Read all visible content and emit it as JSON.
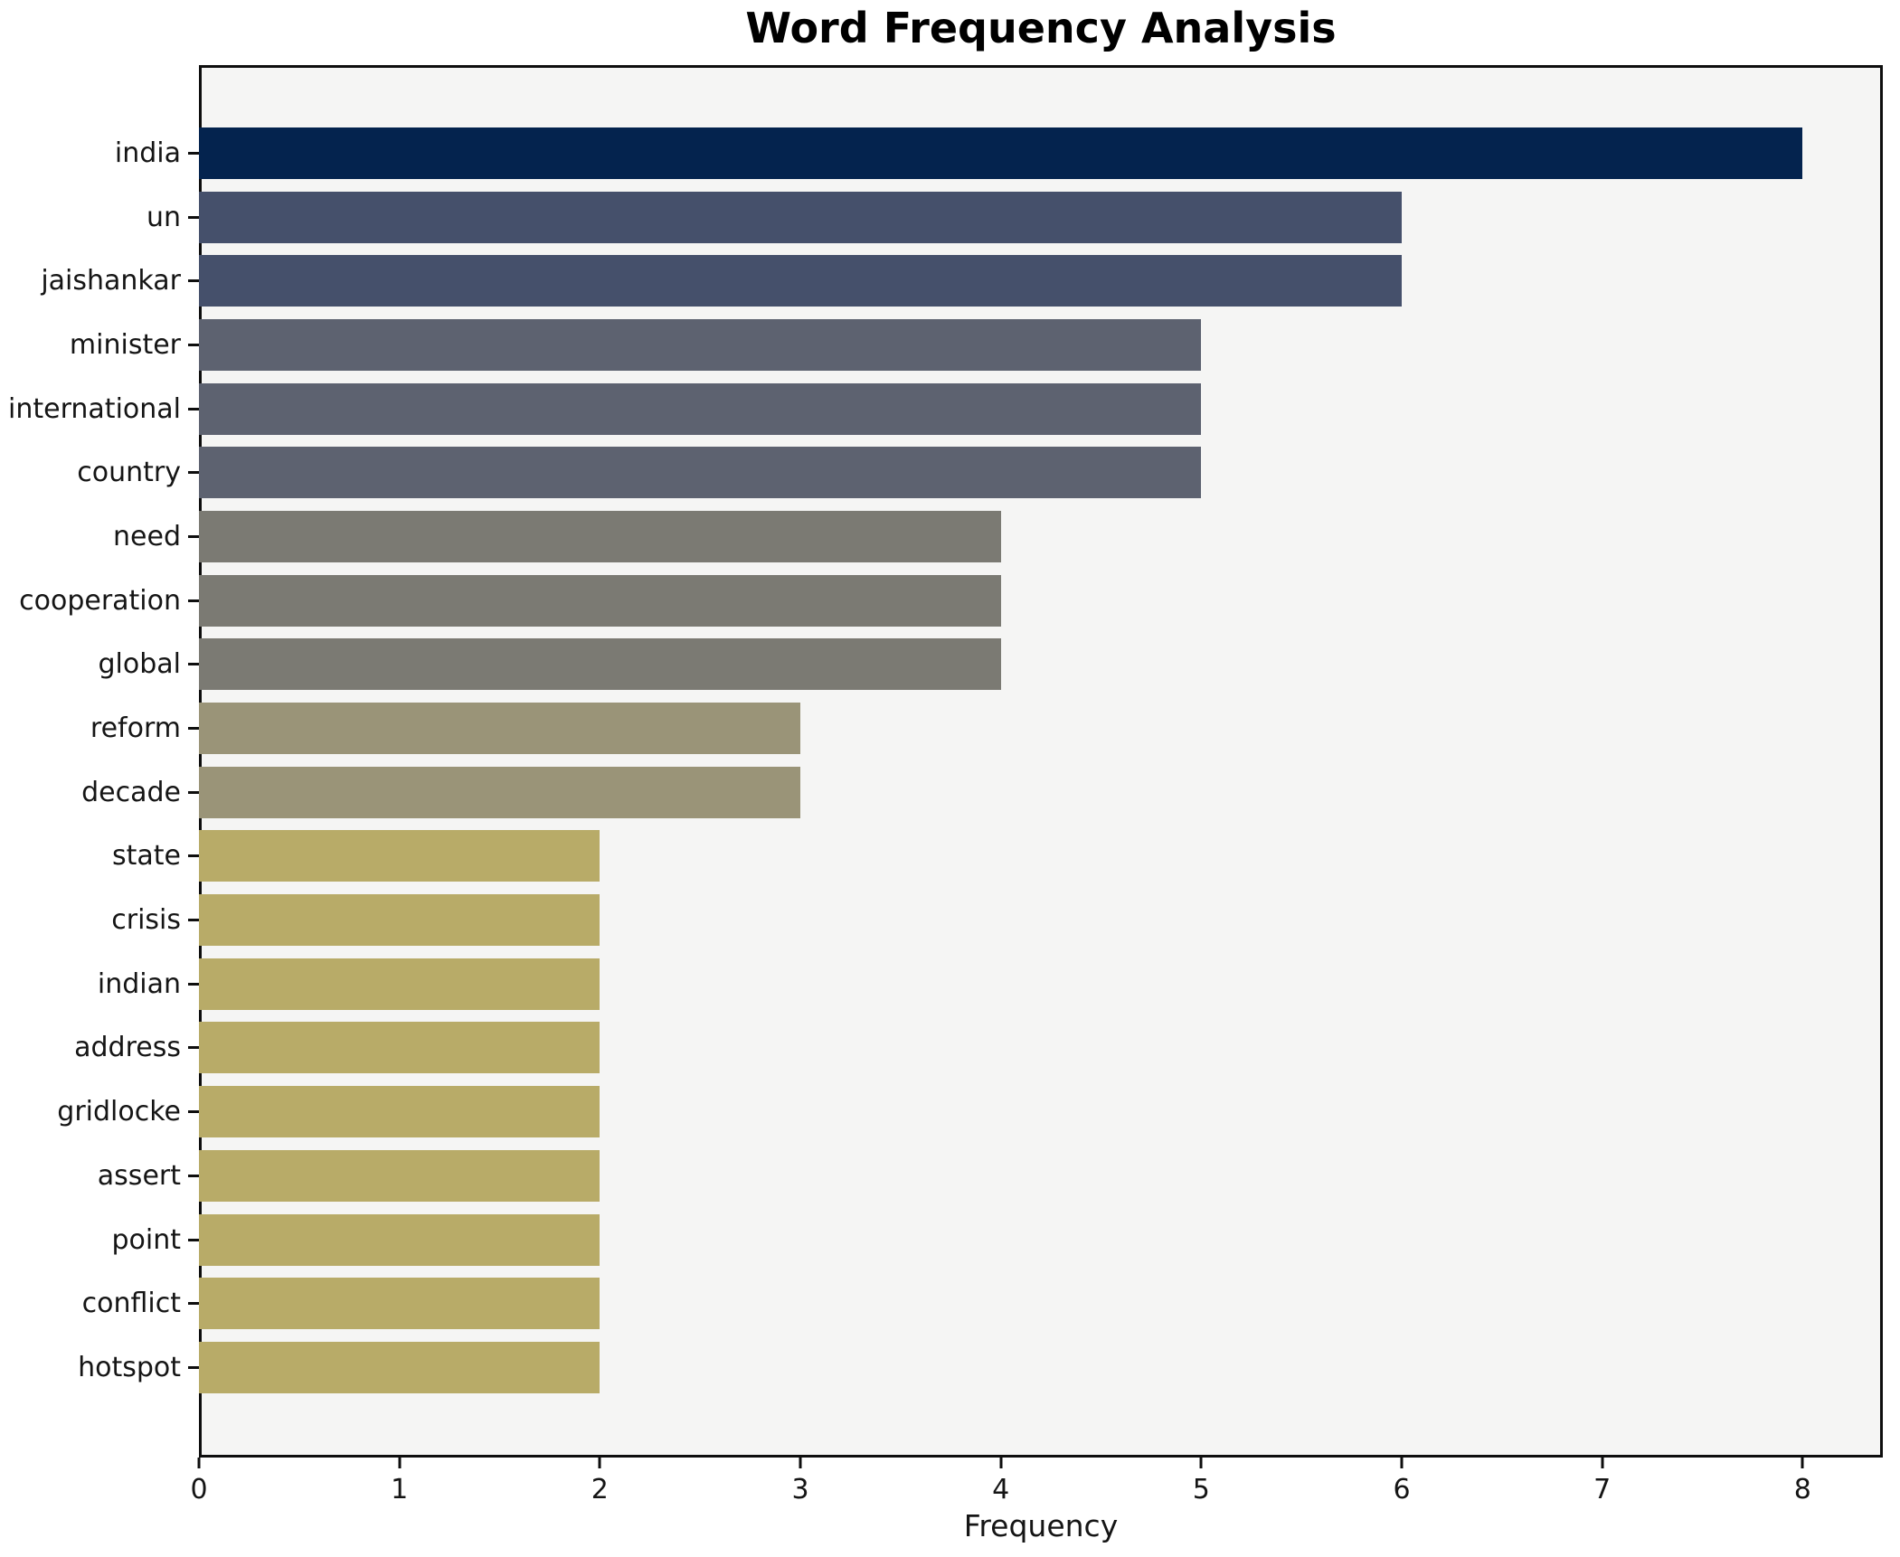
{
  "chart_data": {
    "type": "bar",
    "orientation": "horizontal",
    "title": "Word Frequency Analysis",
    "xlabel": "Frequency",
    "ylabel": "",
    "categories": [
      "india",
      "un",
      "jaishankar",
      "minister",
      "international",
      "country",
      "need",
      "cooperation",
      "global",
      "reform",
      "decade",
      "state",
      "crisis",
      "indian",
      "address",
      "gridlocke",
      "assert",
      "point",
      "conflict",
      "hotspot"
    ],
    "values": [
      8,
      6,
      6,
      5,
      5,
      5,
      4,
      4,
      4,
      3,
      3,
      2,
      2,
      2,
      2,
      2,
      2,
      2,
      2,
      2
    ],
    "bar_colors": [
      "#04234e",
      "#45506b",
      "#45506b",
      "#5d6270",
      "#5d6270",
      "#5d6270",
      "#7b7a73",
      "#7b7a73",
      "#7b7a73",
      "#9a9478",
      "#9a9478",
      "#b8ab68",
      "#b8ab68",
      "#b8ab68",
      "#b8ab68",
      "#b8ab68",
      "#b8ab68",
      "#b8ab68",
      "#b8ab68",
      "#b8ab68"
    ],
    "xlim": [
      0,
      8.4
    ],
    "x_ticks": [
      0,
      1,
      2,
      3,
      4,
      5,
      6,
      7,
      8
    ],
    "grid": false,
    "legend": "none",
    "plot_background": "#f5f5f4",
    "figure_background": "#ffffff",
    "axis_color": "#0e0e0e",
    "text_color": "#151515"
  }
}
